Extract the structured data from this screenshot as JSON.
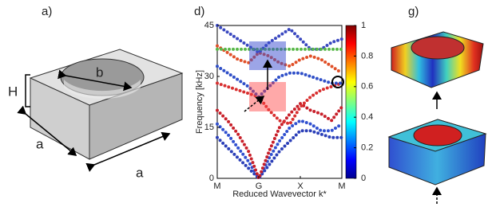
{
  "panel_a": {
    "label": "a)",
    "height_label": "H",
    "hole_label": "b",
    "side_labels": [
      "a",
      "a"
    ]
  },
  "panel_g": {
    "label": "g)"
  },
  "chart_data": {
    "type": "line",
    "title": "d)",
    "x_label": "Reduced Wavevector k*",
    "y_label": "Frequency [kHz]",
    "x": [
      0,
      0.25,
      0.5,
      0.75,
      1,
      1.25,
      1.5,
      1.75,
      2,
      2.25,
      2.5,
      2.75,
      3
    ],
    "xlim": [
      0,
      3
    ],
    "xticks": [
      {
        "value": 0,
        "label": "M"
      },
      {
        "value": 1,
        "label": "G"
      },
      {
        "value": 2,
        "label": "X"
      },
      {
        "value": 3,
        "label": "M"
      }
    ],
    "ylim": [
      0,
      45
    ],
    "yticks": [
      0,
      15,
      30,
      45
    ],
    "series": [
      {
        "color": "#2b3fb8",
        "values": [
          12,
          9,
          6,
          3,
          0,
          4,
          8,
          11,
          14,
          14,
          13,
          12,
          12
        ]
      },
      {
        "color": "#3050d0",
        "values": [
          16,
          13,
          9,
          5,
          0,
          6,
          11,
          15,
          17,
          16,
          14,
          14,
          16
        ]
      },
      {
        "color": "#c8202a",
        "values": [
          20,
          17,
          13,
          8,
          0,
          8,
          15,
          19,
          22,
          20,
          19,
          17,
          21
        ]
      },
      {
        "color": "#d83030",
        "values": [
          28,
          27,
          26,
          25,
          24,
          20,
          17,
          16,
          21,
          24,
          26,
          27,
          28
        ]
      },
      {
        "color": "#2f4fc8",
        "values": [
          33,
          31,
          29,
          27,
          24,
          27,
          30,
          31,
          31,
          30,
          29,
          28,
          28
        ]
      },
      {
        "color": "#e05028",
        "values": [
          39,
          37,
          35,
          34,
          37,
          36,
          34,
          33,
          35,
          36,
          35,
          33,
          31
        ]
      },
      {
        "color": "#3a48c0",
        "values": [
          45,
          43,
          41,
          39,
          37,
          40,
          42,
          44,
          41,
          38,
          38,
          40,
          41
        ]
      },
      {
        "color": "#58b848",
        "values": [
          38,
          38,
          38,
          38,
          38,
          38,
          38,
          38,
          38,
          38,
          38,
          38,
          38
        ]
      }
    ],
    "colorbar": {
      "lim": [
        0,
        1
      ],
      "ticks": [
        0,
        0.2,
        0.4,
        0.6,
        0.8,
        1
      ]
    }
  }
}
